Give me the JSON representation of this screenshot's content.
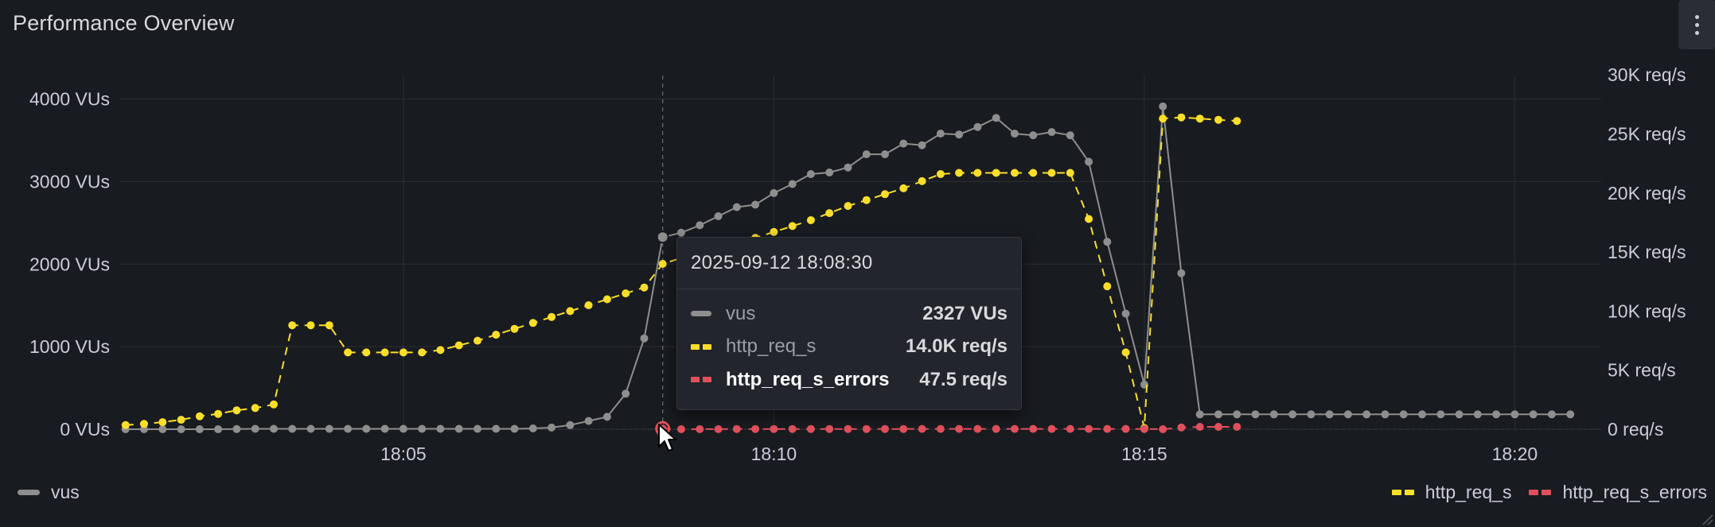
{
  "panel": {
    "title": "Performance Overview"
  },
  "tooltip": {
    "time": "2025-09-12 18:08:30",
    "rows": [
      {
        "name": "vus",
        "value": "2327 VUs"
      },
      {
        "name": "http_req_s",
        "value": "14.0K req/s"
      },
      {
        "name": "http_req_s_errors",
        "value": "47.5 req/s"
      }
    ]
  },
  "legend": {
    "left": [
      "vus"
    ],
    "right": [
      "http_req_s",
      "http_req_s_errors"
    ]
  },
  "colors": {
    "vus": "#8e8e8e",
    "http_req_s": "#fade2a",
    "http_req_s_errors": "#e0505c",
    "background": "#181b1f"
  },
  "chart_data": {
    "type": "line",
    "title": "Performance Overview",
    "x_ticks": [
      "18:05",
      "18:10",
      "18:15",
      "18:20"
    ],
    "x_range": [
      "18:01:10",
      "18:21:10"
    ],
    "y_left": {
      "ticks": [
        "0 VUs",
        "1000 VUs",
        "2000 VUs",
        "3000 VUs",
        "4000 VUs"
      ],
      "range": [
        0,
        4400
      ]
    },
    "y_right": {
      "ticks": [
        "0 req/s",
        "5K req/s",
        "10K req/s",
        "15K req/s",
        "20K req/s",
        "25K req/s",
        "30K req/s"
      ],
      "range": [
        0,
        30500
      ]
    },
    "grid": true,
    "legend_placement": "bottom",
    "series": [
      {
        "name": "vus",
        "axis": "left",
        "unit": "VUs",
        "style": "solid",
        "points": [
          [
            "18:01:15",
            0
          ],
          [
            "18:01:30",
            0
          ],
          [
            "18:01:45",
            0
          ],
          [
            "18:02:00",
            0
          ],
          [
            "18:02:15",
            0
          ],
          [
            "18:02:30",
            0
          ],
          [
            "18:02:45",
            2
          ],
          [
            "18:03:00",
            5
          ],
          [
            "18:03:15",
            5
          ],
          [
            "18:03:30",
            5
          ],
          [
            "18:03:45",
            5
          ],
          [
            "18:04:00",
            5
          ],
          [
            "18:04:15",
            5
          ],
          [
            "18:04:30",
            5
          ],
          [
            "18:04:45",
            5
          ],
          [
            "18:05:00",
            5
          ],
          [
            "18:05:15",
            5
          ],
          [
            "18:05:30",
            5
          ],
          [
            "18:05:45",
            5
          ],
          [
            "18:06:00",
            5
          ],
          [
            "18:06:15",
            5
          ],
          [
            "18:06:30",
            5
          ],
          [
            "18:06:45",
            10
          ],
          [
            "18:07:00",
            20
          ],
          [
            "18:07:15",
            50
          ],
          [
            "18:07:30",
            100
          ],
          [
            "18:07:45",
            150
          ],
          [
            "18:08:00",
            430
          ],
          [
            "18:08:15",
            1100
          ],
          [
            "18:08:30",
            2327
          ],
          [
            "18:08:45",
            2380
          ],
          [
            "18:09:00",
            2470
          ],
          [
            "18:09:15",
            2580
          ],
          [
            "18:09:30",
            2690
          ],
          [
            "18:09:45",
            2720
          ],
          [
            "18:10:00",
            2860
          ],
          [
            "18:10:15",
            2970
          ],
          [
            "18:10:30",
            3090
          ],
          [
            "18:10:45",
            3110
          ],
          [
            "18:11:00",
            3170
          ],
          [
            "18:11:15",
            3330
          ],
          [
            "18:11:30",
            3330
          ],
          [
            "18:11:45",
            3460
          ],
          [
            "18:12:00",
            3440
          ],
          [
            "18:12:15",
            3580
          ],
          [
            "18:12:30",
            3570
          ],
          [
            "18:12:45",
            3660
          ],
          [
            "18:13:00",
            3770
          ],
          [
            "18:13:15",
            3580
          ],
          [
            "18:13:30",
            3560
          ],
          [
            "18:13:45",
            3600
          ],
          [
            "18:14:00",
            3560
          ],
          [
            "18:14:15",
            3240
          ],
          [
            "18:14:30",
            2270
          ],
          [
            "18:14:45",
            1400
          ],
          [
            "18:15:00",
            540
          ],
          [
            "18:15:15",
            3910
          ],
          [
            "18:15:30",
            1890
          ],
          [
            "18:15:45",
            180
          ],
          [
            "18:16:00",
            180
          ],
          [
            "18:16:15",
            180
          ],
          [
            "18:16:30",
            180
          ],
          [
            "18:16:45",
            180
          ],
          [
            "18:17:00",
            180
          ],
          [
            "18:17:15",
            180
          ],
          [
            "18:17:30",
            180
          ],
          [
            "18:17:45",
            180
          ],
          [
            "18:18:00",
            180
          ],
          [
            "18:18:15",
            180
          ],
          [
            "18:18:30",
            180
          ],
          [
            "18:18:45",
            180
          ],
          [
            "18:19:00",
            180
          ],
          [
            "18:19:15",
            180
          ],
          [
            "18:19:30",
            180
          ],
          [
            "18:19:45",
            180
          ],
          [
            "18:20:00",
            180
          ],
          [
            "18:20:15",
            180
          ],
          [
            "18:20:30",
            180
          ],
          [
            "18:20:45",
            180
          ]
        ]
      },
      {
        "name": "http_req_s",
        "axis": "right",
        "unit": "req/s",
        "style": "dashed",
        "points": [
          [
            "18:01:15",
            350
          ],
          [
            "18:01:30",
            450
          ],
          [
            "18:01:45",
            600
          ],
          [
            "18:02:00",
            800
          ],
          [
            "18:02:15",
            1100
          ],
          [
            "18:02:30",
            1300
          ],
          [
            "18:02:45",
            1600
          ],
          [
            "18:03:00",
            1800
          ],
          [
            "18:03:15",
            2100
          ],
          [
            "18:03:30",
            8800
          ],
          [
            "18:03:45",
            8800
          ],
          [
            "18:04:00",
            8800
          ],
          [
            "18:04:15",
            6500
          ],
          [
            "18:04:30",
            6500
          ],
          [
            "18:04:45",
            6500
          ],
          [
            "18:05:00",
            6500
          ],
          [
            "18:05:15",
            6500
          ],
          [
            "18:05:30",
            6700
          ],
          [
            "18:05:45",
            7100
          ],
          [
            "18:06:00",
            7500
          ],
          [
            "18:06:15",
            8000
          ],
          [
            "18:06:30",
            8500
          ],
          [
            "18:06:45",
            9000
          ],
          [
            "18:07:00",
            9500
          ],
          [
            "18:07:15",
            10000
          ],
          [
            "18:07:30",
            10500
          ],
          [
            "18:07:45",
            11000
          ],
          [
            "18:08:00",
            11500
          ],
          [
            "18:08:15",
            12000
          ],
          [
            "18:08:30",
            14000
          ],
          [
            "18:08:45",
            14500
          ],
          [
            "18:09:00",
            15000
          ],
          [
            "18:09:15",
            15400
          ],
          [
            "18:09:30",
            15800
          ],
          [
            "18:09:45",
            16200
          ],
          [
            "18:10:00",
            16700
          ],
          [
            "18:10:15",
            17200
          ],
          [
            "18:10:30",
            17700
          ],
          [
            "18:10:45",
            18300
          ],
          [
            "18:11:00",
            18900
          ],
          [
            "18:11:15",
            19400
          ],
          [
            "18:11:30",
            19900
          ],
          [
            "18:11:45",
            20400
          ],
          [
            "18:12:00",
            21000
          ],
          [
            "18:12:15",
            21600
          ],
          [
            "18:12:30",
            21700
          ],
          [
            "18:12:45",
            21700
          ],
          [
            "18:13:00",
            21700
          ],
          [
            "18:13:15",
            21700
          ],
          [
            "18:13:30",
            21700
          ],
          [
            "18:13:45",
            21700
          ],
          [
            "18:14:00",
            21700
          ],
          [
            "18:14:15",
            17800
          ],
          [
            "18:14:30",
            12100
          ],
          [
            "18:14:45",
            6500
          ],
          [
            "18:15:00",
            100
          ],
          [
            "18:15:15",
            26300
          ],
          [
            "18:15:30",
            26400
          ],
          [
            "18:15:45",
            26300
          ],
          [
            "18:16:00",
            26200
          ],
          [
            "18:16:15",
            26100
          ]
        ]
      },
      {
        "name": "http_req_s_errors",
        "axis": "right",
        "unit": "req/s",
        "style": "dashed",
        "points": [
          [
            "18:08:30",
            47.5
          ],
          [
            "18:08:45",
            0
          ],
          [
            "18:09:00",
            10
          ],
          [
            "18:09:15",
            10
          ],
          [
            "18:09:30",
            20
          ],
          [
            "18:09:45",
            20
          ],
          [
            "18:10:00",
            20
          ],
          [
            "18:10:15",
            20
          ],
          [
            "18:10:30",
            20
          ],
          [
            "18:10:45",
            20
          ],
          [
            "18:11:00",
            20
          ],
          [
            "18:11:15",
            20
          ],
          [
            "18:11:30",
            20
          ],
          [
            "18:11:45",
            20
          ],
          [
            "18:12:00",
            30
          ],
          [
            "18:12:15",
            30
          ],
          [
            "18:12:30",
            30
          ],
          [
            "18:12:45",
            30
          ],
          [
            "18:13:00",
            30
          ],
          [
            "18:13:15",
            30
          ],
          [
            "18:13:30",
            30
          ],
          [
            "18:13:45",
            30
          ],
          [
            "18:14:00",
            30
          ],
          [
            "18:14:15",
            30
          ],
          [
            "18:14:30",
            30
          ],
          [
            "18:14:45",
            30
          ],
          [
            "18:15:00",
            20
          ],
          [
            "18:15:15",
            0
          ],
          [
            "18:15:30",
            150
          ],
          [
            "18:15:45",
            200
          ],
          [
            "18:16:00",
            200
          ],
          [
            "18:16:15",
            200
          ]
        ]
      }
    ],
    "hover": {
      "time": "18:08:30",
      "values": {
        "vus": 2327,
        "http_req_s": 14000,
        "http_req_s_errors": 47.5
      }
    }
  }
}
